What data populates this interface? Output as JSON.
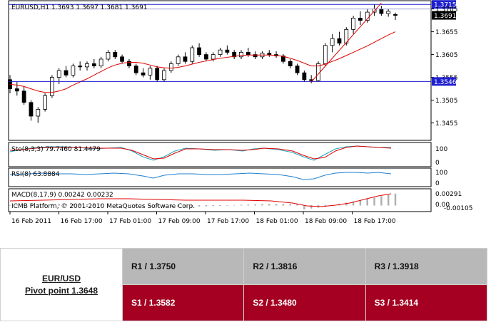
{
  "chart_data": [
    {
      "type": "candlestick",
      "title": "EURUSD,H1  1.3693 1.3697 1.3681 1.3691",
      "ylim": [
        1.342,
        1.372
      ],
      "y_ticks": [
        "1.3715",
        "1.3705",
        "1.3691",
        "1.3655",
        "1.3605",
        "1.3555",
        "1.3546",
        "1.3505",
        "1.3455"
      ],
      "x_ticks": [
        "16 Feb 2011",
        "16 Feb 17:00",
        "17 Feb 01:00",
        "17 Feb 09:00",
        "17 Feb 17:00",
        "18 Feb 01:00",
        "18 Feb 09:00",
        "18 Feb 17:00"
      ],
      "price_labels": {
        "high_line": "1.3715",
        "current": "1.3691",
        "support_line": "1.3546"
      },
      "horizontal_lines": [
        1.3715,
        1.3705,
        1.3546
      ],
      "ohlc": [
        [
          1.355,
          1.356,
          1.352,
          1.353
        ],
        [
          1.353,
          1.3545,
          1.3515,
          1.3525
        ],
        [
          1.3525,
          1.3535,
          1.3495,
          1.35
        ],
        [
          1.35,
          1.3505,
          1.346,
          1.347
        ],
        [
          1.347,
          1.349,
          1.3455,
          1.3485
        ],
        [
          1.3485,
          1.352,
          1.348,
          1.3515
        ],
        [
          1.3515,
          1.356,
          1.351,
          1.3555
        ],
        [
          1.3555,
          1.3575,
          1.354,
          1.357
        ],
        [
          1.357,
          1.358,
          1.3555,
          1.356
        ],
        [
          1.356,
          1.3585,
          1.3555,
          1.358
        ],
        [
          1.358,
          1.359,
          1.357,
          1.3578
        ],
        [
          1.3578,
          1.359,
          1.357,
          1.3585
        ],
        [
          1.3585,
          1.3595,
          1.3575,
          1.358
        ],
        [
          1.358,
          1.36,
          1.3575,
          1.3595
        ],
        [
          1.3595,
          1.3615,
          1.359,
          1.361
        ],
        [
          1.361,
          1.3615,
          1.3595,
          1.36
        ],
        [
          1.36,
          1.3605,
          1.3585,
          1.359
        ],
        [
          1.359,
          1.3595,
          1.3575,
          1.358
        ],
        [
          1.358,
          1.3585,
          1.356,
          1.3565
        ],
        [
          1.3565,
          1.3575,
          1.3555,
          1.356
        ],
        [
          1.356,
          1.358,
          1.355,
          1.3575
        ],
        [
          1.3575,
          1.358,
          1.3545,
          1.355
        ],
        [
          1.355,
          1.3575,
          1.3545,
          1.357
        ],
        [
          1.357,
          1.359,
          1.3565,
          1.3585
        ],
        [
          1.3585,
          1.3605,
          1.358,
          1.36
        ],
        [
          1.36,
          1.361,
          1.3585,
          1.359
        ],
        [
          1.359,
          1.3625,
          1.3585,
          1.362
        ],
        [
          1.362,
          1.363,
          1.36,
          1.3605
        ],
        [
          1.3605,
          1.361,
          1.359,
          1.3595
        ],
        [
          1.3595,
          1.361,
          1.359,
          1.3605
        ],
        [
          1.3605,
          1.362,
          1.36,
          1.3615
        ],
        [
          1.3615,
          1.3625,
          1.3605,
          1.361
        ],
        [
          1.361,
          1.3615,
          1.3595,
          1.36
        ],
        [
          1.36,
          1.3615,
          1.3595,
          1.361
        ],
        [
          1.361,
          1.362,
          1.36,
          1.3605
        ],
        [
          1.3605,
          1.3612,
          1.3595,
          1.36
        ],
        [
          1.36,
          1.3612,
          1.3595,
          1.3608
        ],
        [
          1.3608,
          1.3615,
          1.36,
          1.3605
        ],
        [
          1.3605,
          1.3612,
          1.3598,
          1.3602
        ],
        [
          1.3602,
          1.3606,
          1.3585,
          1.359
        ],
        [
          1.359,
          1.3595,
          1.3575,
          1.358
        ],
        [
          1.358,
          1.3585,
          1.356,
          1.3565
        ],
        [
          1.3565,
          1.357,
          1.3545,
          1.355
        ],
        [
          1.355,
          1.356,
          1.3542,
          1.3548
        ],
        [
          1.3548,
          1.359,
          1.3545,
          1.3585
        ],
        [
          1.3585,
          1.363,
          1.358,
          1.3625
        ],
        [
          1.3625,
          1.365,
          1.361,
          1.364
        ],
        [
          1.364,
          1.3655,
          1.3625,
          1.363
        ],
        [
          1.363,
          1.3665,
          1.3625,
          1.366
        ],
        [
          1.366,
          1.369,
          1.365,
          1.3685
        ],
        [
          1.3685,
          1.37,
          1.367,
          1.368
        ],
        [
          1.368,
          1.3705,
          1.3675,
          1.3698
        ],
        [
          1.3698,
          1.3715,
          1.369,
          1.3705
        ],
        [
          1.3705,
          1.3712,
          1.369,
          1.3695
        ],
        [
          1.3695,
          1.3705,
          1.3688,
          1.37
        ],
        [
          1.3693,
          1.3697,
          1.3681,
          1.3691
        ]
      ],
      "moving_average": [
        1.354,
        1.3538,
        1.3535,
        1.353,
        1.3525,
        1.3522,
        1.3522,
        1.3525,
        1.353,
        1.3538,
        1.3545,
        1.3552,
        1.356,
        1.3568,
        1.3576,
        1.3582,
        1.3586,
        1.3588,
        1.3588,
        1.3586,
        1.3582,
        1.3578,
        1.3576,
        1.3575,
        1.3577,
        1.358,
        1.3584,
        1.3588,
        1.3591,
        1.3594,
        1.3597,
        1.3599,
        1.3601,
        1.3603,
        1.3604,
        1.3604,
        1.3604,
        1.3604,
        1.3603,
        1.3601,
        1.3597,
        1.3592,
        1.3586,
        1.358,
        1.358,
        1.3584,
        1.359,
        1.3596,
        1.3603,
        1.361,
        1.3617,
        1.3624,
        1.3632,
        1.364,
        1.3648,
        1.3655
      ]
    },
    {
      "type": "line",
      "title": "Sto(8,3,3) 79.7460 81.4479",
      "ylim": [
        0,
        100
      ],
      "y_ticks": [
        "100",
        "0"
      ]
    },
    {
      "type": "line",
      "title": "RSI(8) 63.8884",
      "ylim": [
        0,
        100
      ],
      "y_ticks": [
        "100",
        "0"
      ]
    },
    {
      "type": "bar",
      "title": "MACD(8,17,9) 0.00242 0.00232",
      "y_ticks": [
        "0.00291",
        "0.00",
        "-0.00105"
      ]
    }
  ],
  "copyright": "ICMB Platform, © 2001-2010 MetaQuotes Software Corp.",
  "pivot": {
    "pair": "EUR/USD",
    "pivot_label": "Pivot point 1.3648",
    "r1": "R1 / 1.3750",
    "r2": "R2 / 1.3816",
    "r3": "R3 / 1.3918",
    "s1": "S1 / 1.3582",
    "s2": "S2 / 1.3480",
    "s3": "S3 / 1.3414"
  },
  "colors": {
    "resistance_bg": "#b8b8b8",
    "support_bg": "#a50021",
    "level_line": "#1f1fd0",
    "ma_line": "#e00000"
  }
}
